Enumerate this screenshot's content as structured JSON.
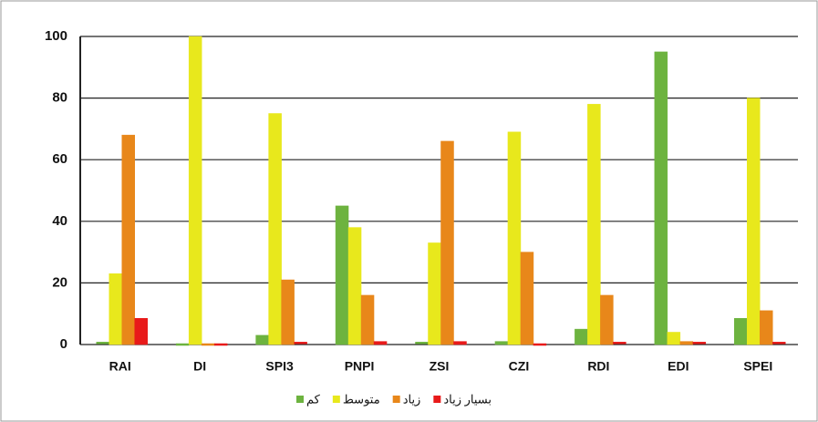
{
  "chart_data": {
    "type": "bar",
    "categories": [
      "RAI",
      "DI",
      "SPI3",
      "PNPI",
      "ZSI",
      "CZI",
      "RDI",
      "EDI",
      "SPEI"
    ],
    "series": [
      {
        "name": "کم",
        "color": "#6db33f",
        "values": [
          0.5,
          0,
          3,
          45,
          0.5,
          1,
          5,
          95,
          8.5
        ]
      },
      {
        "name": "متوسط",
        "color": "#e8e81c",
        "values": [
          23,
          100,
          75,
          38,
          33,
          69,
          78,
          4,
          80
        ]
      },
      {
        "name": "زیاد",
        "color": "#e8871a",
        "values": [
          68,
          0,
          21,
          16,
          66,
          30,
          16,
          1,
          11
        ]
      },
      {
        "name": "بسیار زیاد",
        "color": "#e81a1a",
        "values": [
          8.5,
          0,
          0.5,
          1,
          1,
          0,
          0.5,
          0.5,
          0.5
        ]
      }
    ],
    "ylim": [
      0,
      100
    ],
    "yticks": [
      0,
      20,
      40,
      60,
      80,
      100
    ],
    "grid": true
  }
}
